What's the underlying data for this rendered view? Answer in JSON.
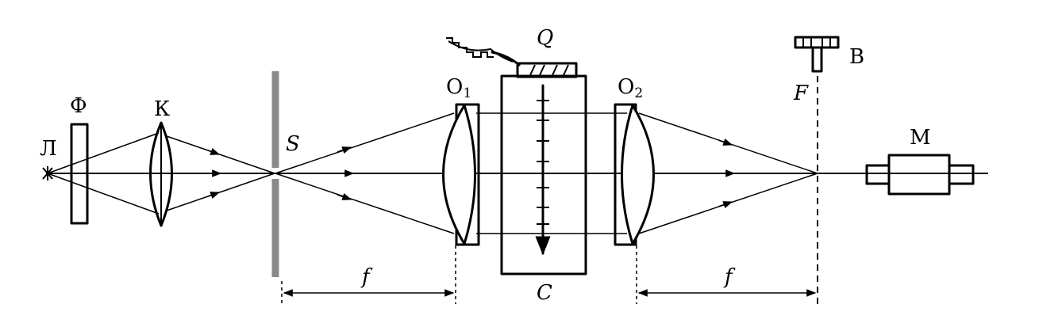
{
  "labels": {
    "lamp": "Л",
    "filter": "Ф",
    "condenser": "К",
    "slit": "S",
    "lens1": "O",
    "lens1_sub": "1",
    "lens2": "O",
    "lens2_sub": "2",
    "cuvette_top": "Q",
    "cuvette_bottom": "C",
    "focal_plane": "F",
    "screw": "В",
    "microscope": "М",
    "focal_length_1": "f",
    "focal_length_2": "f"
  },
  "colors": {
    "lines": "#000000",
    "slit_screen": "#8a8a8a",
    "background": "#ffffff"
  }
}
